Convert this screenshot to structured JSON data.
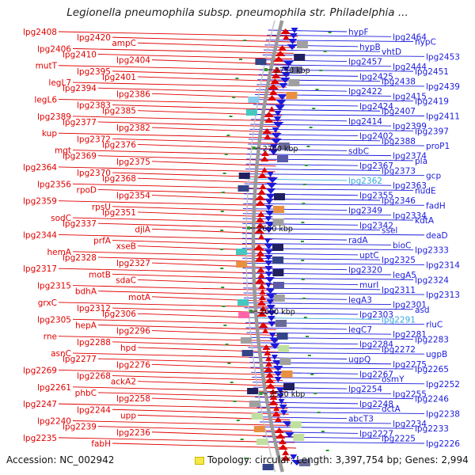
{
  "title": "Legionella pneumophila subsp. pneumophila str. Philadelphia ...",
  "footer": {
    "accession_label": "Accession:",
    "accession": "NC_002942",
    "topology_label": "Topology:",
    "topology": "circular",
    "length_label": "Length:",
    "length": "3,397,754 bp",
    "genes_label": "Genes:",
    "genes": "2,994"
  },
  "colors": {
    "forward_strand": "#e00000",
    "reverse_strand": "#1a1adc",
    "highlight": "#35a8e0",
    "backbone": "#999999",
    "kbp_tick": "#2a9a2a"
  },
  "kbp_marks": [
    "2750 kbp",
    "2700 kbp",
    "2650 kbp",
    "2600 kbp",
    "2550 kbp"
  ],
  "left_labels": [
    "lpg2408",
    "lpg2420",
    "ampC",
    "lpg2406",
    "lpg2410",
    "lpg2404",
    "mutT",
    "lpg2395",
    "lpg2401",
    "legL7",
    "lpg2394",
    "lpg2386",
    "legL6",
    "lpg2383",
    "lpg2385",
    "lpg2389",
    "lpg2377",
    "lpg2382",
    "kup",
    "lpg2372",
    "lpg2376",
    "mgt",
    "lpg2369",
    "lpg2375",
    "lpg2364",
    "lpg2370",
    "lpg2368",
    "lpg2356",
    "rpoD",
    "lpg2354",
    "lpg2359",
    "rpsU",
    "lpg2351",
    "sodC",
    "lpg2337",
    "djlA",
    "lpg2344",
    "prfA",
    "xseB",
    "hemA",
    "lpg2328",
    "lpg2327",
    "lpg2317",
    "motB",
    "sdaC",
    "lpg2315",
    "bdhA",
    "motA",
    "grxC",
    "lpg2312",
    "lpg2306",
    "lpg2305",
    "hepA",
    "lpg2296",
    "rne",
    "lpg2288",
    "hpd",
    "asnC",
    "lpg2277",
    "lpg2276",
    "lpg2269",
    "lpg2268",
    "ackA2",
    "lpg2261",
    "phbC",
    "lpg2258",
    "lpg2247",
    "lpg2244",
    "upp",
    "lpg2240",
    "lpg2239",
    "lpg2236",
    "lpg2235",
    "fabH"
  ],
  "right_labels": [
    "hypF",
    "lpg2464",
    "hypC",
    "hypB",
    "vhtD",
    "lpg2453",
    "lpg2457",
    "lpg2444",
    "lpg2451",
    "lpg2425",
    "lpg2438",
    "lpg2439",
    "lpg2422",
    "lpg2415",
    "lpg2419",
    "lpg2424",
    "lpg2407",
    "lpg2411",
    "lpg2414",
    "lpg2399",
    "lpg2397",
    "lpg2402",
    "lpg2388",
    "proP1",
    "sdbC",
    "lpg2374",
    "pla",
    "lpg2367",
    "lpg2373",
    "gcp",
    "lpg2362",
    "lpg2363",
    "nudE",
    "lpg2355",
    "lpg2346",
    "fadH",
    "lpg2349",
    "lpg2334",
    "kdtA",
    "lpg2342",
    "ssel",
    "deaD",
    "radA",
    "bioC",
    "lpg2333",
    "uptC",
    "lpg2325",
    "lpg2314",
    "lpg2320",
    "legA5",
    "lpg2324",
    "murI",
    "lpg2311",
    "lpg2313",
    "legA3",
    "lpg2301",
    "asd",
    "lpg2303",
    "lpg2291",
    "rluC",
    "legC7",
    "lpg2281",
    "lpg2283",
    "lpg2284",
    "lpg2272",
    "ugpB",
    "ugpQ",
    "lpg2275",
    "lpg2265",
    "lpg2267",
    "osmY",
    "lpg2252",
    "lpg2254",
    "lpg2255",
    "lpg2246",
    "lpg2248",
    "dctA",
    "lpg2238",
    "abcT3",
    "lpg2234",
    "lpg2233",
    "lpg2227",
    "lpg2225",
    "lpg2226"
  ]
}
